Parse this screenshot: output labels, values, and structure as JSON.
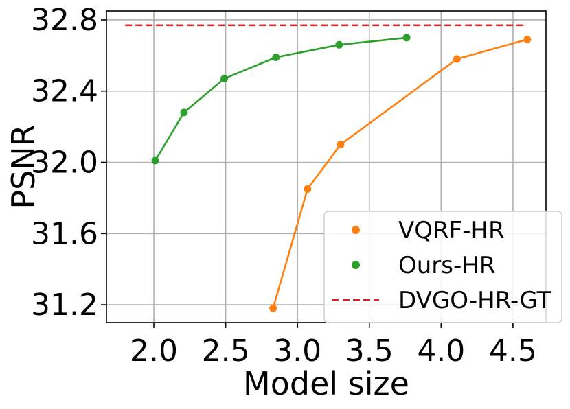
{
  "chart_data": {
    "type": "line",
    "xlabel": "Model size",
    "ylabel": "PSNR",
    "xlim": [
      1.67,
      4.73
    ],
    "ylim": [
      31.1,
      32.85
    ],
    "xticks": [
      2.0,
      2.5,
      3.0,
      3.5,
      4.0,
      4.5
    ],
    "xtick_labels": [
      "2.0",
      "2.5",
      "3.0",
      "3.5",
      "4.0",
      "4.5"
    ],
    "yticks": [
      31.2,
      31.6,
      32.0,
      32.4,
      32.8
    ],
    "ytick_labels": [
      "31.2",
      "31.6",
      "32.0",
      "32.4",
      "32.8"
    ],
    "grid": true,
    "legend_position": "lower-right",
    "series": [
      {
        "name": "VQRF-HR",
        "color": "#ff7f0e",
        "style": "line-markers",
        "x": [
          2.83,
          3.07,
          3.3,
          4.11,
          4.6
        ],
        "y": [
          31.18,
          31.85,
          32.1,
          32.58,
          32.69
        ]
      },
      {
        "name": "Ours-HR",
        "color": "#2ca02c",
        "style": "line-markers",
        "x": [
          2.01,
          2.21,
          2.49,
          2.85,
          3.29,
          3.76
        ],
        "y": [
          32.01,
          32.28,
          32.47,
          32.59,
          32.66,
          32.7
        ]
      },
      {
        "name": "DVGO-HR-GT",
        "color": "#d62728",
        "style": "dashed",
        "x": [
          1.8,
          4.6
        ],
        "y": [
          32.77,
          32.77
        ]
      }
    ]
  }
}
